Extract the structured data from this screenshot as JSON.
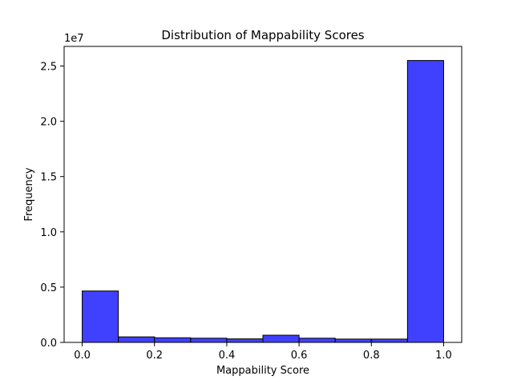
{
  "chart_data": {
    "type": "bar",
    "title": "Distribution of Mappability Scores",
    "xlabel": "Mappability Score",
    "ylabel": "Frequency",
    "y_offset_label": "1e7",
    "bar_color": "#4040ff",
    "edge_color": "#000000",
    "bin_edges": [
      0.0,
      0.1,
      0.2,
      0.3,
      0.4,
      0.5,
      0.6,
      0.7,
      0.8,
      0.9,
      1.0
    ],
    "values": [
      4650000,
      500000,
      420000,
      380000,
      320000,
      650000,
      380000,
      300000,
      300000,
      25500000
    ],
    "xlim": [
      -0.05,
      1.05
    ],
    "ylim": [
      0,
      26775000
    ],
    "x_ticks": [
      {
        "value": 0.0,
        "label": "0.0"
      },
      {
        "value": 0.2,
        "label": "0.2"
      },
      {
        "value": 0.4,
        "label": "0.4"
      },
      {
        "value": 0.6,
        "label": "0.6"
      },
      {
        "value": 0.8,
        "label": "0.8"
      },
      {
        "value": 1.0,
        "label": "1.0"
      }
    ],
    "y_ticks": [
      {
        "value": 0,
        "label": "0.0"
      },
      {
        "value": 5000000,
        "label": "0.5"
      },
      {
        "value": 10000000,
        "label": "1.0"
      },
      {
        "value": 15000000,
        "label": "1.5"
      },
      {
        "value": 20000000,
        "label": "2.0"
      },
      {
        "value": 25000000,
        "label": "2.5"
      }
    ],
    "grid": false
  }
}
